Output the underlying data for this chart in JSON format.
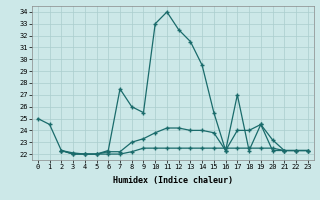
{
  "title": "",
  "xlabel": "Humidex (Indice chaleur)",
  "xlim": [
    -0.5,
    23.5
  ],
  "ylim": [
    21.5,
    34.5
  ],
  "xticks": [
    0,
    1,
    2,
    3,
    4,
    5,
    6,
    7,
    8,
    9,
    10,
    11,
    12,
    13,
    14,
    15,
    16,
    17,
    18,
    19,
    20,
    21,
    22,
    23
  ],
  "yticks": [
    22,
    23,
    24,
    25,
    26,
    27,
    28,
    29,
    30,
    31,
    32,
    33,
    34
  ],
  "line_color": "#1a6b6b",
  "bg_color": "#cce8e8",
  "grid_color": "#aacece",
  "series1_x": [
    0,
    1,
    2,
    3,
    4,
    5,
    6,
    7,
    8,
    9,
    10,
    11,
    12,
    13,
    14,
    15,
    16,
    17,
    18,
    19,
    20,
    21,
    22,
    23
  ],
  "series1_y": [
    25.0,
    24.5,
    22.3,
    22.0,
    22.0,
    22.0,
    22.3,
    27.5,
    26.0,
    25.5,
    33.0,
    34.0,
    32.5,
    31.5,
    29.5,
    25.5,
    22.3,
    27.0,
    22.3,
    24.5,
    22.3,
    22.3,
    22.3,
    22.3
  ],
  "series2_x": [
    2,
    3,
    4,
    5,
    6,
    7,
    8,
    9,
    10,
    11,
    12,
    13,
    14,
    15,
    16,
    17,
    18,
    19,
    20,
    21,
    22,
    23
  ],
  "series2_y": [
    22.3,
    22.1,
    22.0,
    22.0,
    22.2,
    22.2,
    23.0,
    23.3,
    23.8,
    24.2,
    24.2,
    24.0,
    24.0,
    23.8,
    22.3,
    24.0,
    24.0,
    24.5,
    23.2,
    22.3,
    22.3,
    22.3
  ],
  "series3_x": [
    2,
    3,
    4,
    5,
    6,
    7,
    8,
    9,
    10,
    11,
    12,
    13,
    14,
    15,
    16,
    17,
    18,
    19,
    20,
    21,
    22,
    23
  ],
  "series3_y": [
    22.3,
    22.0,
    22.0,
    22.0,
    22.0,
    22.0,
    22.2,
    22.5,
    22.5,
    22.5,
    22.5,
    22.5,
    22.5,
    22.5,
    22.5,
    22.5,
    22.5,
    22.5,
    22.5,
    22.3,
    22.3,
    22.3
  ]
}
